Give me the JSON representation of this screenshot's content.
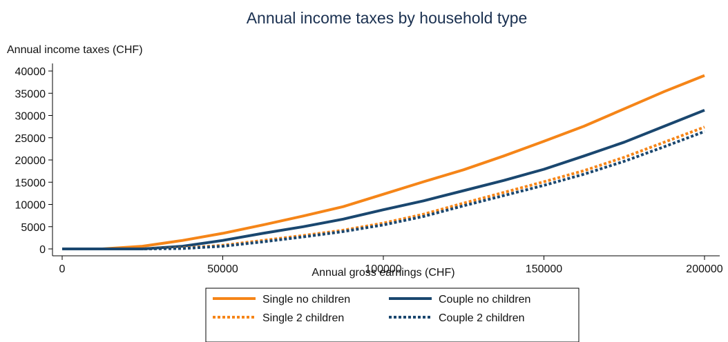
{
  "chart_data": {
    "type": "line",
    "title": "Annual income taxes by household type",
    "xlabel": "Annual gross earnings (CHF)",
    "ylabel": "Annual income taxes (CHF)",
    "xlim": [
      0,
      200000
    ],
    "ylim": [
      0,
      40000
    ],
    "x_ticks": [
      0,
      50000,
      100000,
      150000,
      200000
    ],
    "y_ticks": [
      0,
      5000,
      10000,
      15000,
      20000,
      25000,
      30000,
      35000,
      40000
    ],
    "grid": false,
    "legend_position": "bottom",
    "series": [
      {
        "name": "Single no children",
        "color": "#f58518",
        "style": "solid",
        "x": [
          0,
          12500,
          25000,
          37500,
          50000,
          62500,
          75000,
          87500,
          100000,
          112500,
          125000,
          137500,
          150000,
          162500,
          175000,
          187500,
          200000
        ],
        "y": [
          0,
          0,
          600,
          1900,
          3500,
          5400,
          7400,
          9500,
          12300,
          15100,
          17800,
          20900,
          24200,
          27600,
          31500,
          35400,
          39000
        ]
      },
      {
        "name": "Couple no children",
        "color": "#1a476f",
        "style": "solid",
        "x": [
          0,
          12500,
          25000,
          37500,
          50000,
          62500,
          75000,
          87500,
          100000,
          112500,
          125000,
          137500,
          150000,
          162500,
          175000,
          187500,
          200000
        ],
        "y": [
          0,
          0,
          0,
          600,
          1900,
          3500,
          5000,
          6700,
          8800,
          10800,
          13100,
          15400,
          17900,
          20900,
          24000,
          27600,
          31200
        ]
      },
      {
        "name": "Single 2 children",
        "color": "#f58518",
        "style": "dotted",
        "x": [
          0,
          12500,
          25000,
          37500,
          50000,
          62500,
          75000,
          87500,
          100000,
          112500,
          125000,
          137500,
          150000,
          162500,
          175000,
          187500,
          200000
        ],
        "y": [
          0,
          0,
          0,
          200,
          800,
          1900,
          3000,
          4200,
          5800,
          7800,
          10300,
          12700,
          15100,
          17600,
          20600,
          24000,
          27400
        ]
      },
      {
        "name": "Couple 2 children",
        "color": "#1a476f",
        "style": "dotted",
        "x": [
          0,
          12500,
          25000,
          37500,
          50000,
          62500,
          75000,
          87500,
          100000,
          112500,
          125000,
          137500,
          150000,
          162500,
          175000,
          187500,
          200000
        ],
        "y": [
          0,
          0,
          0,
          100,
          600,
          1600,
          2700,
          3900,
          5400,
          7300,
          9700,
          12000,
          14300,
          16800,
          19700,
          23000,
          26400
        ]
      }
    ]
  }
}
